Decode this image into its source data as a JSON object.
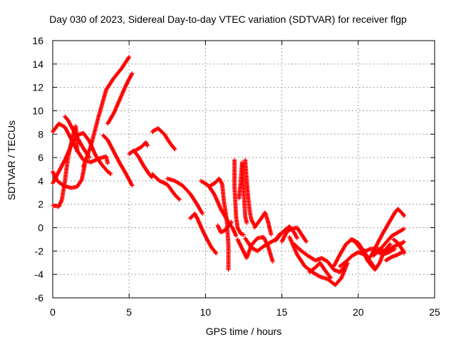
{
  "chart_data": {
    "type": "scatter",
    "title": "Day 030 of 2023, Sidereal Day-to-day VTEC variation (SDTVAR) for receiver flgp",
    "xlabel": "GPS time / hours",
    "ylabel": "SDTVAR / TECUs",
    "xlim": [
      0,
      25
    ],
    "ylim": [
      -6,
      16
    ],
    "xticks": [
      0,
      5,
      10,
      15,
      20,
      25
    ],
    "yticks": [
      -6,
      -4,
      -2,
      0,
      2,
      4,
      6,
      8,
      10,
      12,
      14,
      16
    ],
    "grid": true,
    "marker": "plus",
    "color": "#ff0000",
    "tracks": [
      [
        [
          0.0,
          8.2
        ],
        [
          0.4,
          8.9
        ],
        [
          0.8,
          8.6
        ],
        [
          1.2,
          7.6
        ],
        [
          1.6,
          6.6
        ],
        [
          2.0,
          5.8
        ],
        [
          2.5,
          5.6
        ],
        [
          3.0,
          5.9
        ],
        [
          3.5,
          6.1
        ],
        [
          3.6,
          5.5
        ]
      ],
      [
        [
          0.0,
          3.8
        ],
        [
          0.4,
          4.8
        ],
        [
          0.8,
          5.8
        ],
        [
          1.2,
          7.0
        ],
        [
          1.6,
          7.9
        ],
        [
          2.0,
          8.1
        ],
        [
          2.4,
          7.4
        ],
        [
          2.8,
          6.2
        ],
        [
          3.2,
          5.4
        ],
        [
          3.6,
          4.8
        ],
        [
          3.8,
          4.6
        ]
      ],
      [
        [
          0.0,
          4.8
        ],
        [
          0.3,
          4.0
        ],
        [
          0.7,
          3.6
        ],
        [
          1.2,
          3.4
        ],
        [
          1.6,
          3.5
        ],
        [
          1.9,
          4.1
        ],
        [
          2.1,
          5.4
        ]
      ],
      [
        [
          0.0,
          1.9
        ],
        [
          0.4,
          1.8
        ],
        [
          0.6,
          2.4
        ],
        [
          0.8,
          4.0
        ],
        [
          1.0,
          6.0
        ],
        [
          1.3,
          7.8
        ],
        [
          1.5,
          8.7
        ],
        [
          1.6,
          7.5
        ],
        [
          1.6,
          6.5
        ]
      ],
      [
        [
          0.8,
          9.5
        ],
        [
          1.0,
          9.2
        ],
        [
          1.4,
          8.2
        ],
        [
          2.0,
          6.8
        ],
        [
          2.4,
          6.0
        ]
      ],
      [
        [
          2.0,
          5.2
        ],
        [
          2.5,
          7.0
        ],
        [
          3.0,
          9.5
        ],
        [
          3.5,
          11.8
        ],
        [
          4.0,
          12.8
        ],
        [
          4.5,
          13.6
        ],
        [
          5.0,
          14.6
        ]
      ],
      [
        [
          3.3,
          7.9
        ],
        [
          3.6,
          7.5
        ],
        [
          4.0,
          6.5
        ],
        [
          4.4,
          5.5
        ],
        [
          4.8,
          4.6
        ],
        [
          5.2,
          3.6
        ]
      ],
      [
        [
          3.6,
          8.9
        ],
        [
          4.0,
          9.8
        ],
        [
          4.4,
          11.0
        ],
        [
          4.8,
          12.2
        ],
        [
          5.2,
          13.2
        ]
      ],
      [
        [
          5.0,
          6.3
        ],
        [
          5.3,
          6.6
        ],
        [
          5.6,
          6.1
        ],
        [
          5.9,
          5.4
        ],
        [
          6.3,
          4.6
        ],
        [
          6.5,
          4.3
        ]
      ],
      [
        [
          5.4,
          6.6
        ],
        [
          5.8,
          6.9
        ],
        [
          6.1,
          7.3
        ],
        [
          6.2,
          7.0
        ]
      ],
      [
        [
          6.5,
          8.2
        ],
        [
          6.9,
          8.5
        ],
        [
          7.3,
          8.0
        ],
        [
          7.7,
          7.2
        ],
        [
          8.0,
          6.7
        ]
      ],
      [
        [
          6.5,
          4.6
        ],
        [
          7.0,
          4.0
        ],
        [
          7.5,
          3.7
        ],
        [
          8.0,
          2.8
        ],
        [
          8.3,
          2.4
        ]
      ],
      [
        [
          7.5,
          4.2
        ],
        [
          8.0,
          4.0
        ],
        [
          8.5,
          3.6
        ],
        [
          9.0,
          2.9
        ],
        [
          9.4,
          2.1
        ],
        [
          9.8,
          1.2
        ]
      ],
      [
        [
          9.0,
          0.8
        ],
        [
          9.3,
          1.2
        ],
        [
          9.5,
          0.7
        ],
        [
          9.8,
          -0.2
        ],
        [
          10.1,
          -1.0
        ],
        [
          10.4,
          -1.7
        ],
        [
          10.7,
          -2.2
        ]
      ],
      [
        [
          9.7,
          4.0
        ],
        [
          10.2,
          3.6
        ],
        [
          10.6,
          2.8
        ],
        [
          11.0,
          1.6
        ],
        [
          11.4,
          0.7
        ],
        [
          11.8,
          -0.1
        ],
        [
          12.0,
          -0.7
        ]
      ],
      [
        [
          10.2,
          3.5
        ],
        [
          10.6,
          3.8
        ],
        [
          10.9,
          4.2
        ],
        [
          11.1,
          3.7
        ],
        [
          11.2,
          2.3
        ],
        [
          11.4,
          0.6
        ],
        [
          11.5,
          -1.5
        ],
        [
          11.5,
          -3.6
        ]
      ],
      [
        [
          10.8,
          0.2
        ],
        [
          11.0,
          -0.4
        ],
        [
          11.3,
          -0.2
        ],
        [
          11.6,
          0.3
        ],
        [
          11.7,
          0.5
        ]
      ],
      [
        [
          11.9,
          5.8
        ],
        [
          11.9,
          3.5
        ],
        [
          12.0,
          1.0
        ],
        [
          12.1,
          0.0
        ],
        [
          12.3,
          -0.5
        ],
        [
          12.5,
          -0.6
        ]
      ],
      [
        [
          12.2,
          2.5
        ],
        [
          12.3,
          3.8
        ],
        [
          12.4,
          5.6
        ],
        [
          12.5,
          3.2
        ],
        [
          12.6,
          1.0
        ],
        [
          12.7,
          0.4
        ]
      ],
      [
        [
          12.6,
          5.8
        ],
        [
          12.7,
          4.0
        ],
        [
          12.8,
          2.5
        ],
        [
          12.9,
          1.4
        ],
        [
          13.0,
          0.7
        ],
        [
          13.2,
          0.2
        ]
      ],
      [
        [
          12.1,
          -1.0
        ],
        [
          12.4,
          -1.8
        ],
        [
          12.7,
          -2.6
        ],
        [
          13.0,
          -1.5
        ],
        [
          13.4,
          -0.9
        ],
        [
          13.8,
          -0.8
        ],
        [
          14.1,
          -1.6
        ],
        [
          14.4,
          -2.9
        ]
      ],
      [
        [
          12.6,
          -0.9
        ],
        [
          13.0,
          -1.7
        ],
        [
          13.4,
          -2.0
        ],
        [
          13.8,
          -1.6
        ],
        [
          14.2,
          -1.3
        ],
        [
          14.6,
          -1.0
        ],
        [
          14.9,
          -0.5
        ]
      ],
      [
        [
          13.2,
          0.0
        ],
        [
          13.6,
          0.7
        ],
        [
          13.9,
          1.3
        ],
        [
          14.1,
          0.5
        ],
        [
          14.3,
          -0.6
        ]
      ],
      [
        [
          14.6,
          -1.1
        ],
        [
          14.9,
          -0.6
        ],
        [
          15.2,
          -0.2
        ],
        [
          15.5,
          0.1
        ],
        [
          15.8,
          -0.4
        ],
        [
          16.0,
          -0.9
        ]
      ],
      [
        [
          15.0,
          -1.2
        ],
        [
          15.3,
          -0.4
        ],
        [
          15.6,
          -0.1
        ],
        [
          16.0,
          0.0
        ],
        [
          16.3,
          -0.6
        ],
        [
          16.6,
          -1.2
        ]
      ],
      [
        [
          15.5,
          -0.8
        ],
        [
          16.0,
          -2.3
        ],
        [
          16.5,
          -3.3
        ],
        [
          17.0,
          -3.8
        ],
        [
          17.5,
          -4.2
        ],
        [
          18.0,
          -4.4
        ],
        [
          18.5,
          -4.9
        ],
        [
          18.9,
          -4.3
        ],
        [
          19.3,
          -3.0
        ]
      ],
      [
        [
          15.8,
          -1.4
        ],
        [
          16.2,
          -1.9
        ],
        [
          16.7,
          -2.4
        ],
        [
          17.2,
          -2.8
        ],
        [
          17.6,
          -2.6
        ],
        [
          18.0,
          -2.9
        ],
        [
          18.4,
          -3.6
        ],
        [
          18.8,
          -3.8
        ],
        [
          19.2,
          -3.2
        ]
      ],
      [
        [
          16.8,
          -3.8
        ],
        [
          17.2,
          -3.4
        ],
        [
          17.5,
          -3.0
        ],
        [
          17.8,
          -3.6
        ],
        [
          18.2,
          -4.3
        ]
      ],
      [
        [
          18.4,
          -3.3
        ],
        [
          18.8,
          -2.3
        ],
        [
          19.2,
          -1.4
        ],
        [
          19.6,
          -1.0
        ],
        [
          20.0,
          -1.3
        ],
        [
          20.4,
          -2.1
        ],
        [
          20.7,
          -2.7
        ]
      ],
      [
        [
          18.8,
          -3.3
        ],
        [
          19.2,
          -2.9
        ],
        [
          19.6,
          -2.4
        ],
        [
          20.0,
          -2.1
        ],
        [
          20.4,
          -2.3
        ],
        [
          20.8,
          -2.9
        ],
        [
          21.1,
          -3.5
        ]
      ],
      [
        [
          19.5,
          -1.0
        ],
        [
          19.8,
          -1.2
        ],
        [
          20.2,
          -1.9
        ],
        [
          20.5,
          -2.0
        ],
        [
          20.8,
          -1.8
        ],
        [
          21.1,
          -1.8
        ]
      ],
      [
        [
          20.3,
          -2.0
        ],
        [
          20.6,
          -2.8
        ],
        [
          20.9,
          -3.3
        ],
        [
          21.1,
          -3.6
        ],
        [
          21.4,
          -3.0
        ],
        [
          21.7,
          -2.0
        ],
        [
          22.1,
          -1.4
        ]
      ],
      [
        [
          20.8,
          -2.5
        ],
        [
          21.2,
          -1.5
        ],
        [
          21.6,
          -0.5
        ],
        [
          22.0,
          0.4
        ],
        [
          22.4,
          1.3
        ],
        [
          22.6,
          1.6
        ],
        [
          22.9,
          1.2
        ],
        [
          23.0,
          1.0
        ]
      ],
      [
        [
          21.0,
          -2.4
        ],
        [
          21.4,
          -1.9
        ],
        [
          21.8,
          -1.3
        ],
        [
          22.2,
          -0.7
        ],
        [
          22.6,
          -0.4
        ],
        [
          23.0,
          -0.1
        ]
      ],
      [
        [
          21.3,
          -1.8
        ],
        [
          21.7,
          -2.0
        ],
        [
          22.1,
          -1.8
        ],
        [
          22.5,
          -1.5
        ],
        [
          22.9,
          -1.3
        ],
        [
          23.0,
          -1.2
        ]
      ],
      [
        [
          21.8,
          -2.8
        ],
        [
          22.2,
          -2.5
        ],
        [
          22.6,
          -2.3
        ],
        [
          23.0,
          -2.0
        ]
      ],
      [
        [
          22.3,
          -1.0
        ],
        [
          22.6,
          -1.3
        ],
        [
          22.9,
          -1.9
        ],
        [
          23.0,
          -2.2
        ]
      ],
      [
        [
          21.0,
          -1.8
        ],
        [
          21.3,
          -2.1
        ],
        [
          21.6,
          -2.3
        ],
        [
          22.0,
          -2.1
        ],
        [
          22.4,
          -1.8
        ]
      ]
    ]
  }
}
